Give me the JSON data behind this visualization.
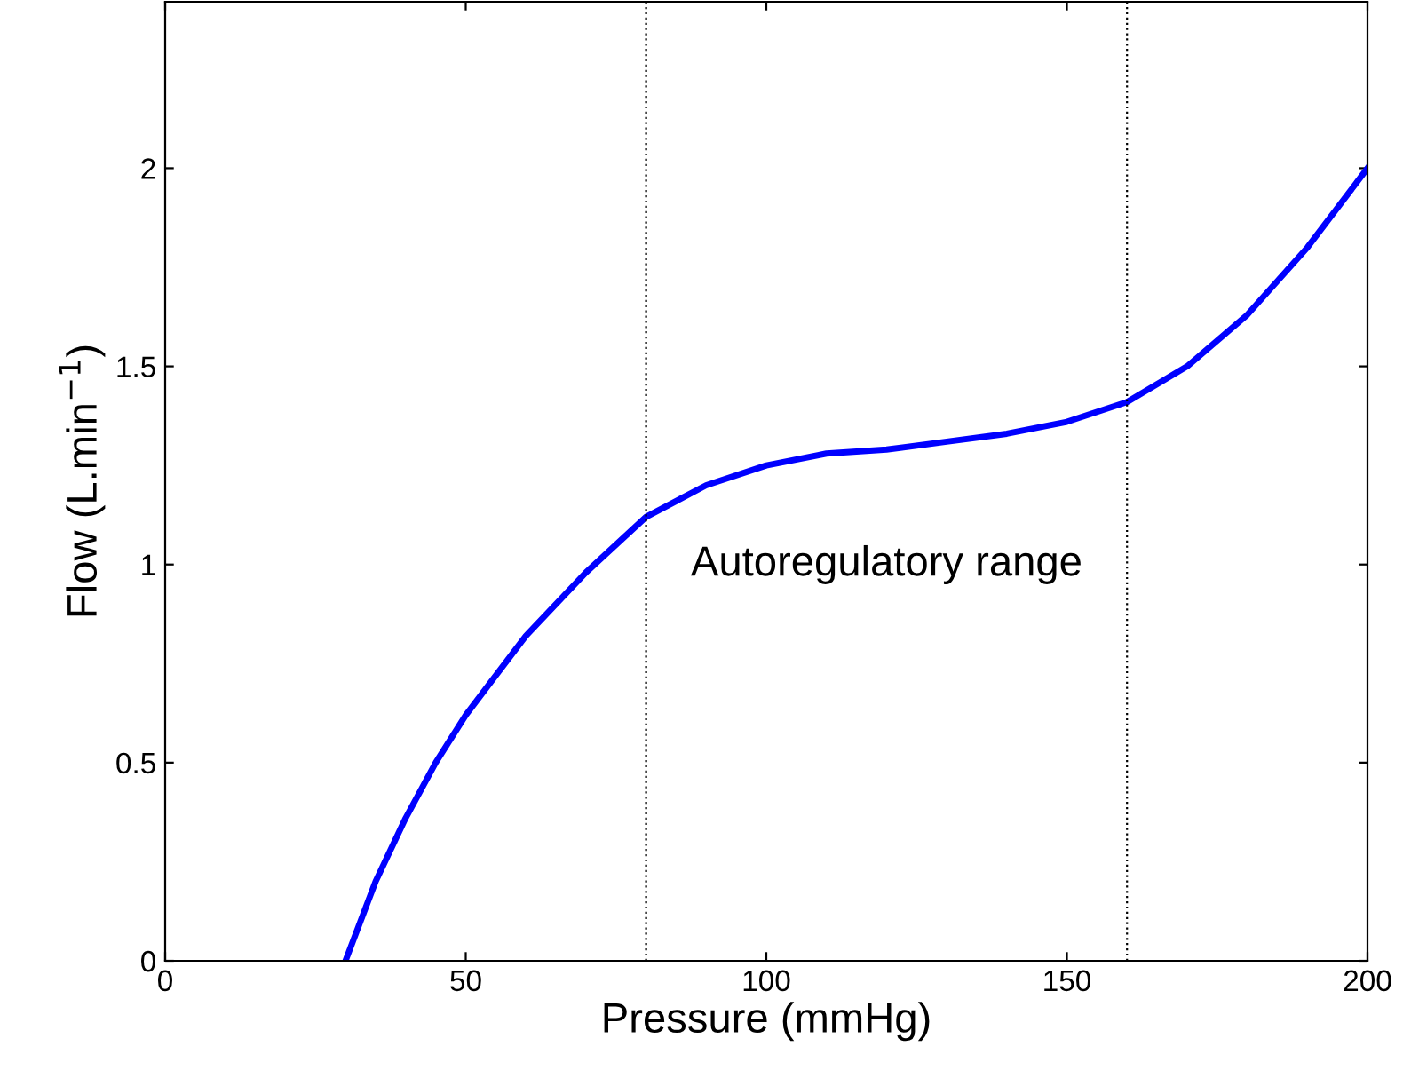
{
  "chart_data": {
    "type": "line",
    "xlabel": "Pressure (mmHg)",
    "ylabel": "Flow (L.min$^{−1}$)",
    "x": [
      30,
      35,
      40,
      45,
      50,
      60,
      70,
      80,
      90,
      100,
      110,
      120,
      130,
      140,
      150,
      160,
      170,
      180,
      190,
      200
    ],
    "series": [
      {
        "color": "#0000ff",
        "values": [
          0,
          0.2,
          0.36,
          0.5,
          0.62,
          0.82,
          0.98,
          1.12,
          1.2,
          1.25,
          1.28,
          1.29,
          1.31,
          1.33,
          1.36,
          1.41,
          1.5,
          1.63,
          1.8,
          2.0
        ]
      }
    ],
    "xlim": [
      0,
      200
    ],
    "ylim": [
      0,
      2.42
    ],
    "xticks": [
      0,
      50,
      100,
      150,
      200
    ],
    "yticks": [
      0,
      0.5,
      1,
      1.5,
      2
    ],
    "ref_lines": [
      {
        "axis": "x",
        "value": 80,
        "color": "#000000",
        "line_style": "dotted"
      },
      {
        "axis": "x",
        "value": 160,
        "color": "#000000",
        "line_style": "dotted"
      }
    ],
    "annotations": [
      "Autoregulatory range"
    ],
    "grid": false,
    "legend": false,
    "marker": "none",
    "line_style": "solid"
  }
}
